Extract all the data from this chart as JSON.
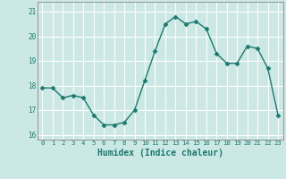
{
  "x": [
    0,
    1,
    2,
    3,
    4,
    5,
    6,
    7,
    8,
    9,
    10,
    11,
    12,
    13,
    14,
    15,
    16,
    17,
    18,
    19,
    20,
    21,
    22,
    23
  ],
  "y": [
    17.9,
    17.9,
    17.5,
    17.6,
    17.5,
    16.8,
    16.4,
    16.4,
    16.5,
    17.0,
    18.2,
    19.4,
    20.5,
    20.8,
    20.5,
    20.6,
    20.3,
    19.3,
    18.9,
    18.9,
    19.6,
    19.5,
    18.7,
    16.8
  ],
  "ylim": [
    15.8,
    21.4
  ],
  "yticks": [
    16,
    17,
    18,
    19,
    20,
    21
  ],
  "xlabel": "Humidex (Indice chaleur)",
  "line_color": "#1a7a6e",
  "marker": "D",
  "marker_size": 2.5,
  "bg_color": "#cce8e5",
  "grid_color": "#ffffff",
  "tick_color": "#1a7a6e",
  "spine_color": "#888888"
}
